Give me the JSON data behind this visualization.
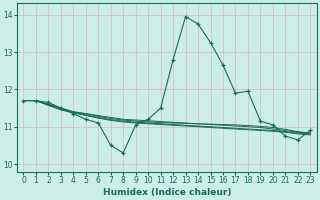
{
  "xlabel": "Humidex (Indice chaleur)",
  "ylabel": "",
  "background_color": "#cceee8",
  "grid_color": "#ddb8b8",
  "line_color": "#1a6b5a",
  "xlim": [
    -0.5,
    23.5
  ],
  "ylim": [
    9.8,
    14.3
  ],
  "yticks": [
    10,
    11,
    12,
    13,
    14
  ],
  "xticks": [
    0,
    1,
    2,
    3,
    4,
    5,
    6,
    7,
    8,
    9,
    10,
    11,
    12,
    13,
    14,
    15,
    16,
    17,
    18,
    19,
    20,
    21,
    22,
    23
  ],
  "main_series": [
    11.7,
    11.7,
    11.65,
    11.5,
    11.35,
    11.2,
    11.1,
    10.5,
    10.3,
    11.05,
    11.2,
    11.5,
    12.8,
    13.95,
    13.75,
    13.25,
    12.65,
    11.9,
    11.95,
    11.15,
    11.05,
    10.75,
    10.65,
    10.9
  ],
  "flat_series": [
    [
      11.7,
      11.7,
      11.6,
      11.5,
      11.4,
      11.35,
      11.3,
      11.25,
      11.2,
      11.18,
      11.16,
      11.14,
      11.12,
      11.1,
      11.08,
      11.06,
      11.04,
      11.02,
      11.0,
      10.98,
      10.94,
      10.9,
      10.85,
      10.82
    ],
    [
      11.7,
      11.7,
      11.6,
      11.5,
      11.4,
      11.35,
      11.28,
      11.22,
      11.18,
      11.15,
      11.13,
      11.11,
      11.1,
      11.09,
      11.08,
      11.07,
      11.06,
      11.05,
      11.03,
      11.01,
      10.98,
      10.93,
      10.87,
      10.83
    ],
    [
      11.7,
      11.7,
      11.58,
      11.47,
      11.39,
      11.32,
      11.25,
      11.19,
      11.15,
      11.12,
      11.1,
      11.08,
      11.06,
      11.04,
      11.02,
      11.0,
      10.98,
      10.96,
      10.94,
      10.92,
      10.9,
      10.87,
      10.83,
      10.8
    ],
    [
      11.7,
      11.7,
      11.57,
      11.45,
      11.37,
      11.3,
      11.23,
      11.17,
      11.13,
      11.1,
      11.08,
      11.06,
      11.04,
      11.02,
      11.0,
      10.98,
      10.96,
      10.94,
      10.92,
      10.9,
      10.88,
      10.85,
      10.81,
      10.78
    ]
  ]
}
